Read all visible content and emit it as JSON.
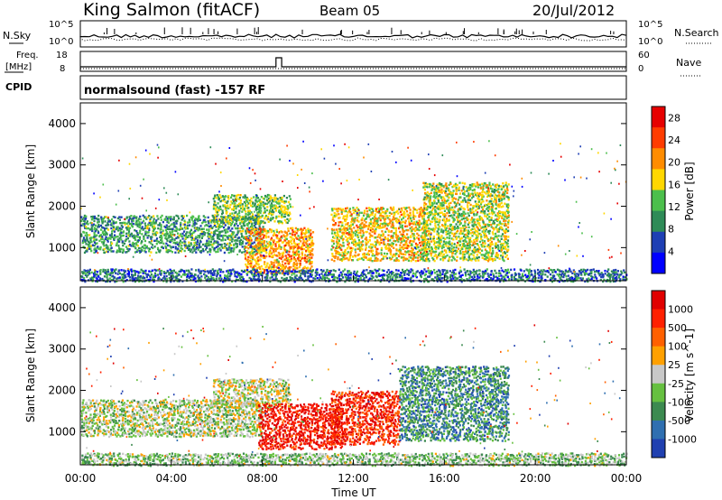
{
  "header": {
    "station": "King Salmon (fitACF)",
    "beam": "Beam 05",
    "date": "20/Jul/2012"
  },
  "summary_panels": {
    "nsky_label": "N.Sky",
    "nsearch_label": "N.Search",
    "nsky_ticks": [
      "10^5",
      "10^0"
    ],
    "nsearch_ticks": [
      "10^5",
      "10^0"
    ],
    "freq_label_1": "Freq.",
    "freq_label_2": "[MHz]",
    "freq_ticks": [
      "18",
      "8"
    ],
    "nave_label": "Nave",
    "nave_ticks": [
      "60",
      "0"
    ],
    "cpid_label": "CPID",
    "cpid_text": "normalsound (fast) -157 RF"
  },
  "chart_data": [
    {
      "type": "heatmap",
      "title": "",
      "xlabel": "Time UT",
      "ylabel": "Slant Range [km]",
      "x_tick_labels": [
        "00:00",
        "04:00",
        "08:00",
        "12:00",
        "16:00",
        "20:00",
        "00:00"
      ],
      "x_range_hours": [
        0,
        24
      ],
      "y_tick_labels": [
        "1000",
        "2000",
        "3000",
        "4000"
      ],
      "ylim": [
        200,
        4500
      ],
      "colorbar": {
        "label": "Power [dB]",
        "ticks": [
          "4",
          "8",
          "12",
          "16",
          "20",
          "24",
          "28"
        ],
        "range": [
          0,
          30
        ],
        "colors": [
          "#0000ff",
          "#1e3fb4",
          "#2e8b57",
          "#4cbf4c",
          "#ffd700",
          "#ff8c00",
          "#ff3c00",
          "#e60000"
        ]
      },
      "echo_regions": [
        {
          "t0": 0.0,
          "t1": 8.0,
          "r0": 900,
          "r1": 1800,
          "level": 0.35
        },
        {
          "t0": 5.8,
          "t1": 9.2,
          "r0": 1600,
          "r1": 2300,
          "level": 0.45
        },
        {
          "t0": 7.2,
          "t1": 10.2,
          "r0": 400,
          "r1": 1500,
          "level": 0.65
        },
        {
          "t0": 11.0,
          "t1": 15.2,
          "r0": 700,
          "r1": 2000,
          "level": 0.6
        },
        {
          "t0": 15.0,
          "t1": 18.8,
          "r0": 700,
          "r1": 2600,
          "level": 0.5
        },
        {
          "t0": 0.0,
          "t1": 24.0,
          "r0": 200,
          "r1": 500,
          "level": 0.25
        }
      ]
    },
    {
      "type": "heatmap",
      "title": "",
      "xlabel": "Time UT",
      "ylabel": "Slant Range [km]",
      "x_tick_labels": [
        "00:00",
        "04:00",
        "08:00",
        "12:00",
        "16:00",
        "20:00",
        "00:00"
      ],
      "x_range_hours": [
        0,
        24
      ],
      "y_tick_labels": [
        "1000",
        "2000",
        "3000",
        "4000"
      ],
      "ylim": [
        200,
        4500
      ],
      "colorbar": {
        "label": "Velocity [m s^-1]",
        "ticks": [
          "1000",
          "500",
          "100",
          "25",
          "-25",
          "-100",
          "-500",
          "-1000"
        ],
        "range": [
          -1000,
          1000
        ],
        "colors": [
          "#2040b0",
          "#2f6fb0",
          "#3c8a50",
          "#66c040",
          "#c8c8c8",
          "#ffa000",
          "#ff6000",
          "#ff2000",
          "#e00000"
        ]
      },
      "echo_regions": [
        {
          "t0": 0.0,
          "t1": 8.0,
          "r0": 900,
          "r1": 1800,
          "level": 0.45
        },
        {
          "t0": 5.8,
          "t1": 9.2,
          "r0": 1600,
          "r1": 2300,
          "level": 0.5
        },
        {
          "t0": 7.8,
          "t1": 11.5,
          "r0": 600,
          "r1": 1700,
          "level": 0.9
        },
        {
          "t0": 11.0,
          "t1": 14.0,
          "r0": 700,
          "r1": 2000,
          "level": 0.85
        },
        {
          "t0": 14.0,
          "t1": 18.8,
          "r0": 800,
          "r1": 2600,
          "level": 0.25
        },
        {
          "t0": 0.0,
          "t1": 24.0,
          "r0": 200,
          "r1": 500,
          "level": 0.4
        }
      ]
    }
  ]
}
